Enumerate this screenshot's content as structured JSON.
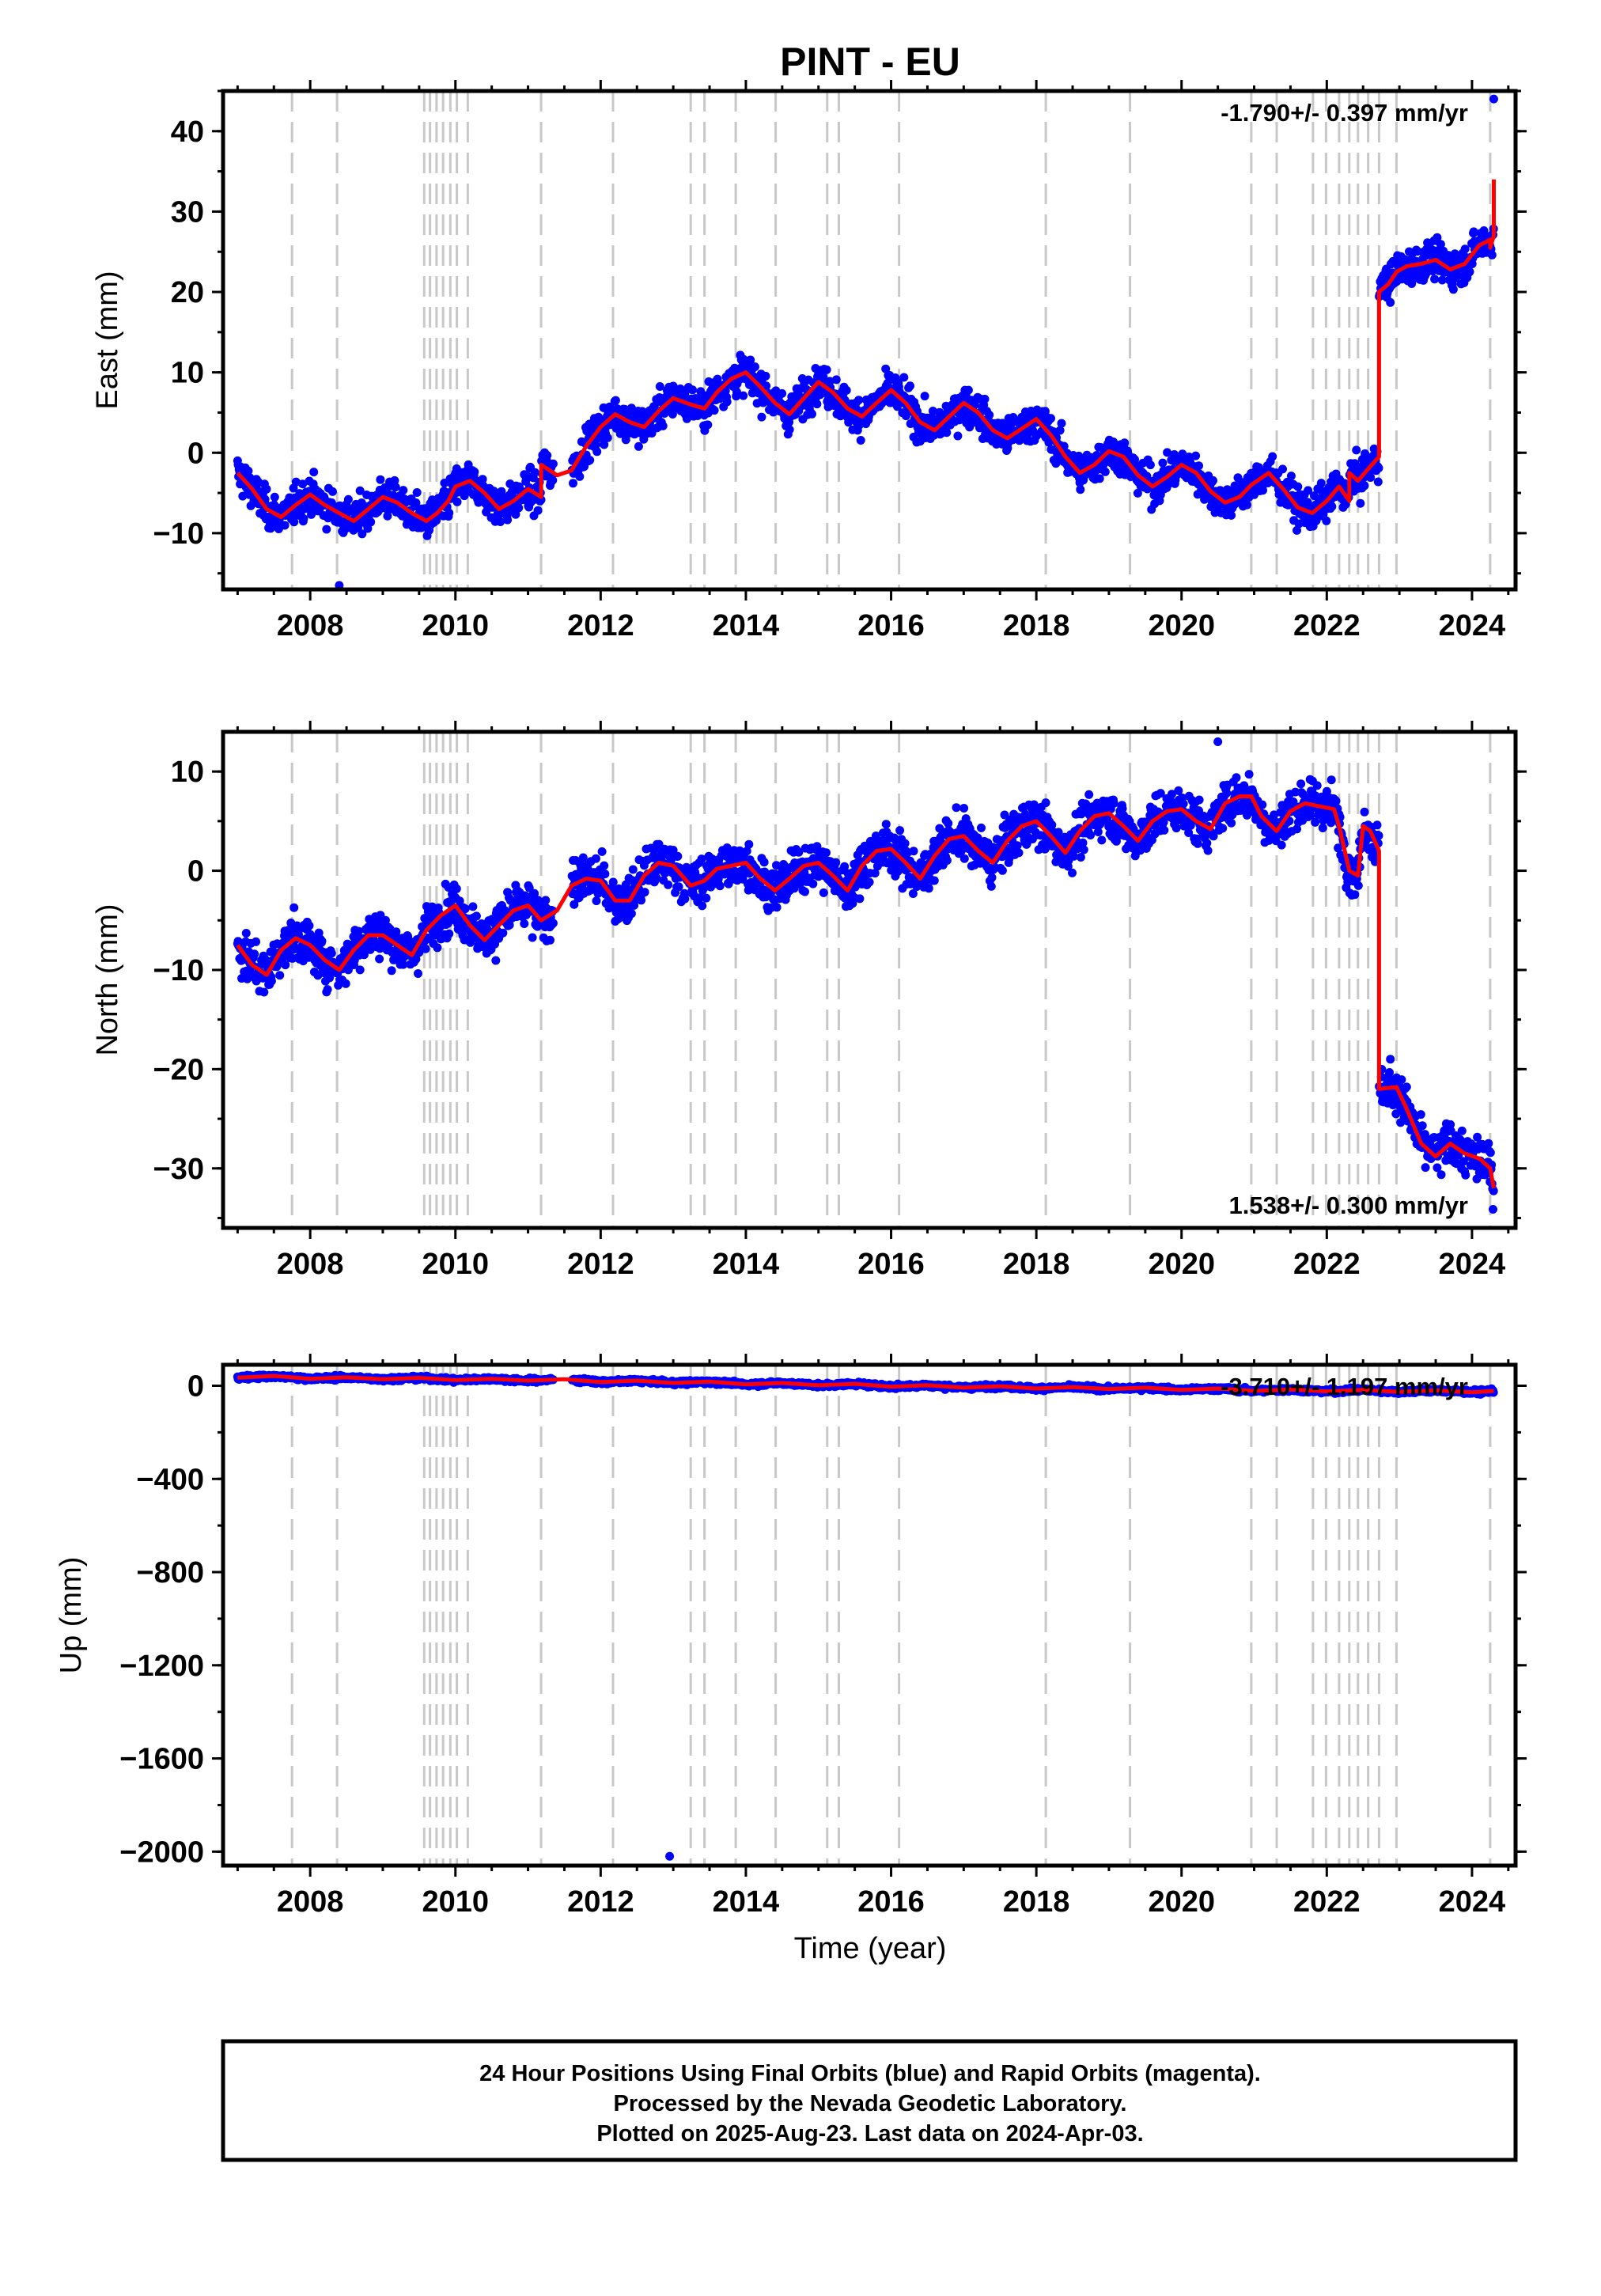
{
  "title": "PINT - EU",
  "colors": {
    "points": "#0000ff",
    "model": "#ff0000",
    "steps": "#c8c8c8",
    "frame": "#000000"
  },
  "footer": {
    "line1": "24 Hour Positions Using Final Orbits (blue) and Rapid Orbits (magenta).",
    "line2": "Processed by the Nevada Geodetic Laboratory.",
    "line3": "Plotted on 2025-Aug-23. Last data on 2024-Apr-03."
  },
  "chart_data": [
    {
      "type": "scatter",
      "component": "east",
      "ylabel": "East (mm)",
      "xlabel": "",
      "rate_label": "-1.790+/- 0.397 mm/yr",
      "rate_position": "top-right",
      "xlim": [
        2006.8,
        2024.6
      ],
      "ylim": [
        -17,
        45
      ],
      "xticks": [
        2008,
        2010,
        2012,
        2014,
        2016,
        2018,
        2020,
        2022,
        2024
      ],
      "yticks": [
        -10,
        0,
        10,
        20,
        30,
        40
      ],
      "step_epochs": [
        2007.75,
        2008.37,
        2009.57,
        2009.65,
        2009.74,
        2009.83,
        2009.93,
        2010.02,
        2010.17,
        2011.18,
        2012.17,
        2013.24,
        2013.43,
        2013.86,
        2014.41,
        2015.12,
        2015.28,
        2016.11,
        2018.13,
        2019.29,
        2020.96,
        2021.31,
        2021.81,
        2021.99,
        2022.17,
        2022.31,
        2022.43,
        2022.57,
        2022.72,
        2022.96,
        2024.25
      ],
      "model_points": [
        [
          2007.0,
          -2.5
        ],
        [
          2007.2,
          -4.5
        ],
        [
          2007.4,
          -7.0
        ],
        [
          2007.6,
          -8.0
        ],
        [
          2007.8,
          -6.5
        ],
        [
          2008.0,
          -5.2
        ],
        [
          2008.2,
          -6.5
        ],
        [
          2008.4,
          -7.5
        ],
        [
          2008.6,
          -8.5
        ],
        [
          2008.8,
          -7.0
        ],
        [
          2009.0,
          -5.5
        ],
        [
          2009.2,
          -6.2
        ],
        [
          2009.4,
          -7.5
        ],
        [
          2009.6,
          -8.5
        ],
        [
          2009.75,
          -7.5
        ],
        [
          2009.9,
          -6.0
        ],
        [
          2010.0,
          -4.2
        ],
        [
          2010.2,
          -3.5
        ],
        [
          2010.4,
          -5.0
        ],
        [
          2010.6,
          -7.0
        ],
        [
          2010.8,
          -6.0
        ],
        [
          2011.0,
          -4.5
        ],
        [
          2011.18,
          -5.5
        ],
        [
          2011.18,
          -1.5
        ],
        [
          2011.4,
          -2.8
        ],
        [
          2011.6,
          -2.2
        ],
        [
          2011.8,
          0.8
        ],
        [
          2012.0,
          3.2
        ],
        [
          2012.2,
          4.8
        ],
        [
          2012.4,
          3.8
        ],
        [
          2012.6,
          3.2
        ],
        [
          2012.8,
          5.2
        ],
        [
          2013.0,
          6.8
        ],
        [
          2013.24,
          6.0
        ],
        [
          2013.43,
          5.5
        ],
        [
          2013.6,
          7.5
        ],
        [
          2013.8,
          9.2
        ],
        [
          2014.0,
          10.0
        ],
        [
          2014.2,
          8.2
        ],
        [
          2014.4,
          6.2
        ],
        [
          2014.6,
          4.8
        ],
        [
          2014.8,
          6.8
        ],
        [
          2015.0,
          8.8
        ],
        [
          2015.2,
          7.5
        ],
        [
          2015.4,
          5.5
        ],
        [
          2015.6,
          4.5
        ],
        [
          2015.8,
          6.2
        ],
        [
          2016.0,
          7.8
        ],
        [
          2016.2,
          6.2
        ],
        [
          2016.4,
          3.8
        ],
        [
          2016.6,
          2.8
        ],
        [
          2016.8,
          4.5
        ],
        [
          2017.0,
          6.2
        ],
        [
          2017.2,
          5.0
        ],
        [
          2017.4,
          2.8
        ],
        [
          2017.6,
          1.8
        ],
        [
          2017.8,
          3.0
        ],
        [
          2018.0,
          4.2
        ],
        [
          2018.2,
          2.2
        ],
        [
          2018.4,
          -0.5
        ],
        [
          2018.6,
          -2.5
        ],
        [
          2018.8,
          -1.5
        ],
        [
          2019.0,
          0.2
        ],
        [
          2019.2,
          -0.5
        ],
        [
          2019.4,
          -2.8
        ],
        [
          2019.6,
          -4.2
        ],
        [
          2019.8,
          -3.0
        ],
        [
          2020.0,
          -1.5
        ],
        [
          2020.2,
          -2.5
        ],
        [
          2020.4,
          -4.8
        ],
        [
          2020.6,
          -6.2
        ],
        [
          2020.8,
          -5.5
        ],
        [
          2020.96,
          -4.0
        ],
        [
          2021.2,
          -2.5
        ],
        [
          2021.4,
          -4.5
        ],
        [
          2021.6,
          -6.8
        ],
        [
          2021.8,
          -7.5
        ],
        [
          2022.0,
          -6.0
        ],
        [
          2022.17,
          -4.2
        ],
        [
          2022.31,
          -6.0
        ],
        [
          2022.31,
          -2.5
        ],
        [
          2022.43,
          -3.5
        ],
        [
          2022.57,
          -2.0
        ],
        [
          2022.72,
          -0.5
        ],
        [
          2022.72,
          20.0
        ],
        [
          2022.85,
          21.0
        ],
        [
          2022.96,
          22.5
        ],
        [
          2023.1,
          23.2
        ],
        [
          2023.3,
          23.5
        ],
        [
          2023.5,
          24.0
        ],
        [
          2023.7,
          22.8
        ],
        [
          2023.9,
          23.5
        ],
        [
          2024.1,
          25.8
        ],
        [
          2024.25,
          26.5
        ],
        [
          2024.25,
          25.5
        ],
        [
          2024.3,
          27.0
        ],
        [
          2024.3,
          34.0
        ]
      ],
      "scatter_outliers": [
        [
          2008.4,
          -16.5
        ],
        [
          2024.3,
          44.0
        ]
      ]
    },
    {
      "type": "scatter",
      "component": "north",
      "ylabel": "North (mm)",
      "xlabel": "",
      "rate_label": "1.538+/- 0.300 mm/yr",
      "rate_position": "bottom-right",
      "xlim": [
        2006.8,
        2024.6
      ],
      "ylim": [
        -36,
        14
      ],
      "xticks": [
        2008,
        2010,
        2012,
        2014,
        2016,
        2018,
        2020,
        2022,
        2024
      ],
      "yticks": [
        -30,
        -20,
        -10,
        0,
        10
      ],
      "step_epochs": [
        2007.75,
        2008.37,
        2009.57,
        2009.65,
        2009.74,
        2009.83,
        2009.93,
        2010.02,
        2010.17,
        2011.18,
        2012.17,
        2013.24,
        2013.43,
        2013.86,
        2014.41,
        2015.12,
        2015.28,
        2016.11,
        2018.13,
        2019.29,
        2020.96,
        2021.31,
        2021.81,
        2021.99,
        2022.17,
        2022.31,
        2022.43,
        2022.57,
        2022.72,
        2022.96,
        2024.25
      ],
      "model_points": [
        [
          2007.0,
          -7.5
        ],
        [
          2007.2,
          -9.5
        ],
        [
          2007.4,
          -10.5
        ],
        [
          2007.6,
          -8.0
        ],
        [
          2007.8,
          -6.8
        ],
        [
          2008.0,
          -7.5
        ],
        [
          2008.2,
          -9.0
        ],
        [
          2008.4,
          -10.0
        ],
        [
          2008.6,
          -8.0
        ],
        [
          2008.8,
          -6.5
        ],
        [
          2009.0,
          -6.5
        ],
        [
          2009.2,
          -7.5
        ],
        [
          2009.4,
          -8.5
        ],
        [
          2009.6,
          -6.0
        ],
        [
          2009.8,
          -4.5
        ],
        [
          2010.0,
          -3.5
        ],
        [
          2010.2,
          -5.5
        ],
        [
          2010.4,
          -7.0
        ],
        [
          2010.6,
          -5.5
        ],
        [
          2010.8,
          -4.0
        ],
        [
          2011.0,
          -3.5
        ],
        [
          2011.18,
          -5.0
        ],
        [
          2011.4,
          -4.0
        ],
        [
          2011.6,
          -1.5
        ],
        [
          2011.8,
          -0.8
        ],
        [
          2012.0,
          -1.0
        ],
        [
          2012.2,
          -3.0
        ],
        [
          2012.4,
          -3.0
        ],
        [
          2012.6,
          -0.5
        ],
        [
          2012.8,
          0.8
        ],
        [
          2013.0,
          0.5
        ],
        [
          2013.24,
          -1.5
        ],
        [
          2013.43,
          -1.0
        ],
        [
          2013.6,
          0.2
        ],
        [
          2013.8,
          0.5
        ],
        [
          2014.0,
          0.8
        ],
        [
          2014.2,
          -0.8
        ],
        [
          2014.4,
          -2.0
        ],
        [
          2014.6,
          -0.8
        ],
        [
          2014.8,
          0.5
        ],
        [
          2015.0,
          0.8
        ],
        [
          2015.2,
          -0.5
        ],
        [
          2015.4,
          -2.0
        ],
        [
          2015.6,
          0.5
        ],
        [
          2015.8,
          2.0
        ],
        [
          2016.0,
          2.2
        ],
        [
          2016.2,
          0.8
        ],
        [
          2016.4,
          -0.8
        ],
        [
          2016.6,
          1.5
        ],
        [
          2016.8,
          3.2
        ],
        [
          2017.0,
          3.5
        ],
        [
          2017.2,
          2.0
        ],
        [
          2017.4,
          0.8
        ],
        [
          2017.6,
          3.0
        ],
        [
          2017.8,
          4.5
        ],
        [
          2018.0,
          5.0
        ],
        [
          2018.2,
          3.5
        ],
        [
          2018.4,
          1.8
        ],
        [
          2018.6,
          4.0
        ],
        [
          2018.8,
          5.5
        ],
        [
          2019.0,
          5.8
        ],
        [
          2019.2,
          4.5
        ],
        [
          2019.4,
          3.0
        ],
        [
          2019.6,
          5.0
        ],
        [
          2019.8,
          6.0
        ],
        [
          2020.0,
          6.2
        ],
        [
          2020.2,
          5.0
        ],
        [
          2020.4,
          4.2
        ],
        [
          2020.6,
          6.8
        ],
        [
          2020.8,
          7.5
        ],
        [
          2020.96,
          7.5
        ],
        [
          2021.1,
          5.5
        ],
        [
          2021.31,
          4.0
        ],
        [
          2021.5,
          6.0
        ],
        [
          2021.7,
          6.8
        ],
        [
          2021.9,
          6.5
        ],
        [
          2022.1,
          6.2
        ],
        [
          2022.17,
          4.5
        ],
        [
          2022.31,
          0.0
        ],
        [
          2022.43,
          -0.5
        ],
        [
          2022.5,
          4.5
        ],
        [
          2022.6,
          4.0
        ],
        [
          2022.72,
          2.0
        ],
        [
          2022.72,
          -22.0
        ],
        [
          2022.96,
          -21.8
        ],
        [
          2023.1,
          -24.0
        ],
        [
          2023.3,
          -27.5
        ],
        [
          2023.5,
          -28.8
        ],
        [
          2023.7,
          -27.5
        ],
        [
          2023.9,
          -28.5
        ],
        [
          2024.1,
          -29.0
        ],
        [
          2024.25,
          -30.0
        ],
        [
          2024.3,
          -32.0
        ]
      ],
      "scatter_outliers": [
        [
          2020.5,
          13.0
        ]
      ]
    },
    {
      "type": "scatter",
      "component": "up",
      "ylabel": "Up (mm)",
      "xlabel": "Time (year)",
      "rate_label": "-3.710+/- 1.197 mm/yr",
      "rate_position": "top-right",
      "xlim": [
        2006.8,
        2024.6
      ],
      "ylim": [
        -2060,
        90
      ],
      "xticks": [
        2008,
        2010,
        2012,
        2014,
        2016,
        2018,
        2020,
        2022,
        2024
      ],
      "yticks": [
        -2000,
        -1600,
        -1200,
        -800,
        -400,
        0
      ],
      "step_epochs": [
        2007.75,
        2008.37,
        2009.57,
        2009.65,
        2009.74,
        2009.83,
        2009.93,
        2010.02,
        2010.17,
        2011.18,
        2012.17,
        2013.24,
        2013.43,
        2013.86,
        2014.41,
        2015.12,
        2015.28,
        2016.11,
        2018.13,
        2019.29,
        2020.96,
        2021.31,
        2021.81,
        2021.99,
        2022.17,
        2022.31,
        2022.43,
        2022.57,
        2022.72,
        2022.96,
        2024.25
      ],
      "model_points": [
        [
          2007.0,
          35
        ],
        [
          2007.5,
          42
        ],
        [
          2008.0,
          30
        ],
        [
          2008.5,
          36
        ],
        [
          2009.0,
          28
        ],
        [
          2009.5,
          34
        ],
        [
          2010.0,
          24
        ],
        [
          2010.5,
          30
        ],
        [
          2011.0,
          22
        ],
        [
          2011.5,
          28
        ],
        [
          2012.0,
          16
        ],
        [
          2012.5,
          22
        ],
        [
          2013.0,
          12
        ],
        [
          2013.5,
          18
        ],
        [
          2014.0,
          6
        ],
        [
          2014.5,
          12
        ],
        [
          2015.0,
          2
        ],
        [
          2015.5,
          8
        ],
        [
          2016.0,
          -4
        ],
        [
          2016.5,
          2
        ],
        [
          2017.0,
          -8
        ],
        [
          2017.5,
          -2
        ],
        [
          2018.0,
          -12
        ],
        [
          2018.5,
          -6
        ],
        [
          2019.0,
          -14
        ],
        [
          2019.5,
          -8
        ],
        [
          2020.0,
          -18
        ],
        [
          2020.5,
          -12
        ],
        [
          2021.0,
          -22
        ],
        [
          2021.5,
          -16
        ],
        [
          2022.0,
          -24
        ],
        [
          2022.5,
          -18
        ],
        [
          2023.0,
          -26
        ],
        [
          2023.5,
          -20
        ],
        [
          2024.0,
          -28
        ],
        [
          2024.3,
          -22
        ]
      ],
      "scatter_outliers": [
        [
          2012.95,
          -2020
        ]
      ]
    }
  ]
}
